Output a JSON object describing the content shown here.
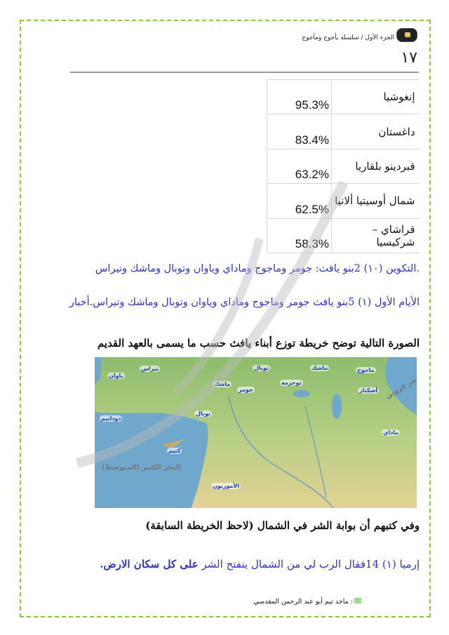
{
  "header": {
    "series_title": "الجزء الأول / سلسلة يأجوج ومأجوج",
    "page_number": "١٧"
  },
  "table": {
    "rows": [
      {
        "name": "إنغوشيا",
        "value": "95.3%"
      },
      {
        "name": "داغستان",
        "value": "83.4%"
      },
      {
        "name": "قبردينو بلقاريا",
        "value": "63.2%"
      },
      {
        "name": "شمال أوسيتيا ألانيا",
        "value": "62.5%"
      },
      {
        "name": "قراشاي – شركيسيا",
        "value": "58.3%"
      }
    ]
  },
  "verses": {
    "genesis": ".التكوين (١٠)   2بنو يافث: جومر وماجوج وماداي وياوان وتوبال وماشك وتيراس",
    "chronicles": "الأيام الأول (١)   5بنو يافث جومر وماجوج وماداي وياوان وتوبال وماشك وتيراس.أخبار"
  },
  "map_caption": "الصورة التالية توضح خريطة توزع أبناء يافث حسب ما يسمى بالعهد القديم",
  "map": {
    "labels": [
      "ياوان",
      "تيراس",
      "توبال",
      "ماشك",
      "ماجوج",
      "ماشك",
      "توجرمة",
      "جومر",
      "أشكناز",
      "دودانيم",
      "توبال",
      "ماداي",
      "كتيم",
      "الأموريون"
    ],
    "seas": [
      "البحر الكبير (المتوسط)",
      "بحر قزوين"
    ],
    "colors": {
      "sea": "#6fa8cc",
      "land": "#9cc47a",
      "desert": "#e1cf92"
    }
  },
  "north_heading": "وفي كتبهم أن بوابة الشر في الشمال (لاحظ الخريطة السابقة)",
  "jeremiah": {
    "prefix": "إرميا (١)  14فقال الرب لي من الشمال ينفتح الشر ",
    "bold": "على كل سكان الارض."
  },
  "author": ": ماجد تيم أبو عبد الرحمن المقدسي"
}
